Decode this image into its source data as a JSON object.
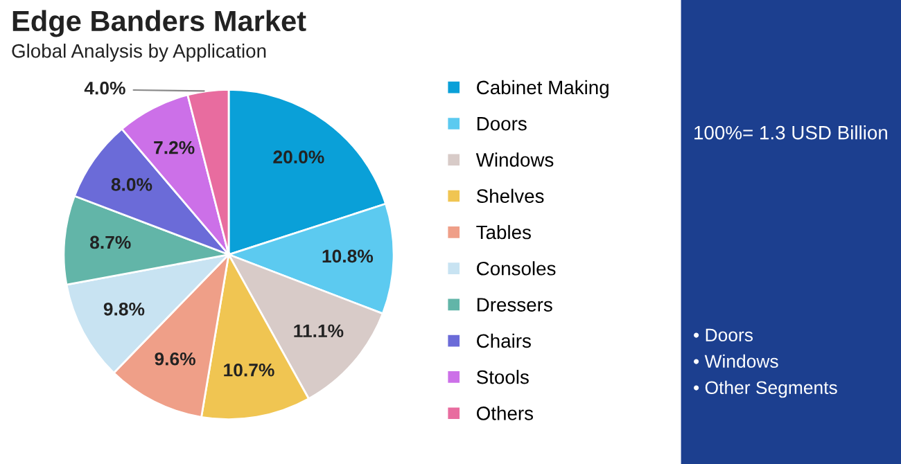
{
  "chart_data": {
    "type": "pie",
    "title": "Edge Banders Market",
    "subtitle": "Global Analysis by Application",
    "categories": [
      "Cabinet Making",
      "Doors",
      "Windows",
      "Shelves",
      "Tables",
      "Consoles",
      "Dressers",
      "Chairs",
      "Stools",
      "Others"
    ],
    "values": [
      20.0,
      10.8,
      11.1,
      10.7,
      9.6,
      9.8,
      8.7,
      8.0,
      7.2,
      4.0
    ],
    "colors": [
      "#0aa0d8",
      "#5ccaf0",
      "#d8cbc8",
      "#f0c552",
      "#ef9f88",
      "#c8e3f2",
      "#62b5a8",
      "#6b6bd8",
      "#cc70e8",
      "#e86c9f"
    ],
    "value_labels": [
      "20.0%",
      "10.8%",
      "11.1%",
      "10.7%",
      "9.6%",
      "9.8%",
      "8.7%",
      "8.0%",
      "7.2%",
      "4.0%"
    ],
    "legend": "right",
    "annotations": [
      "100%= 1.3 USD Billion",
      "• Doors",
      "• Windows",
      "• Other Segments"
    ]
  }
}
